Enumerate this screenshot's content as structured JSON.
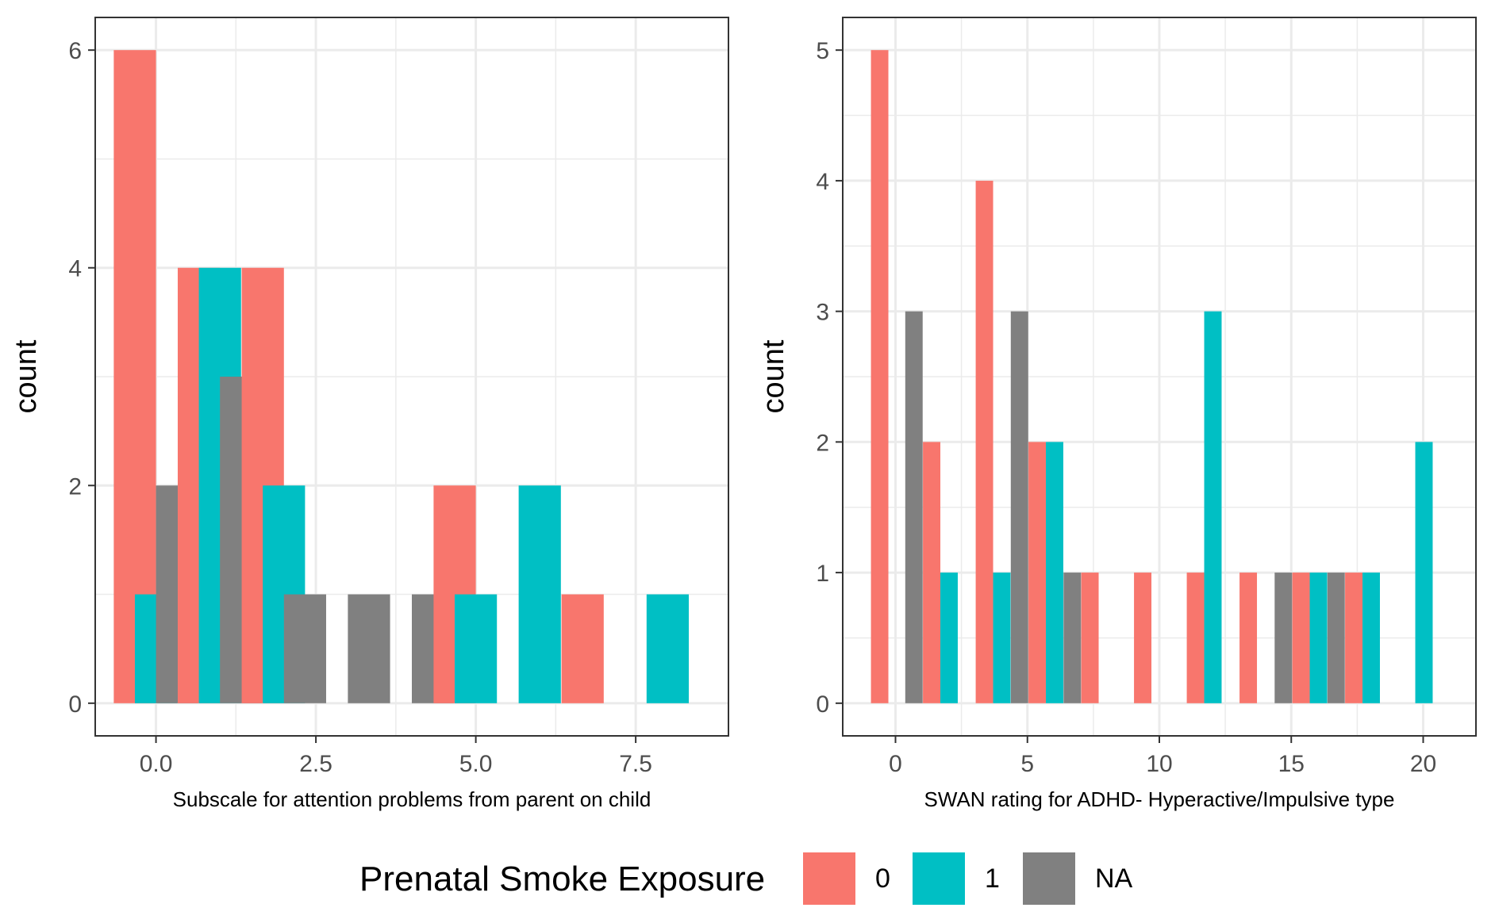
{
  "colors": {
    "0": "#F8766D",
    "1": "#00BFC4",
    "NA": "#808080"
  },
  "legend": {
    "title": "Prenatal Smoke Exposure",
    "items": [
      {
        "label": "0",
        "color": "#F8766D"
      },
      {
        "label": "1",
        "color": "#00BFC4"
      },
      {
        "label": "NA",
        "color": "#808080"
      }
    ]
  },
  "chart_data": [
    {
      "type": "bar",
      "xlabel": "Subscale for attention problems from parent on child",
      "ylabel": "count",
      "xlim": [
        -0.95,
        8.95
      ],
      "ylim": [
        -0.3,
        6.3
      ],
      "bar_width": 0.66,
      "x_ticks": [
        {
          "value": 0,
          "label": "0.0"
        },
        {
          "value": 2.5,
          "label": "2.5"
        },
        {
          "value": 5,
          "label": "5.0"
        },
        {
          "value": 7.5,
          "label": "7.5"
        }
      ],
      "y_ticks": [
        0,
        2,
        4,
        6
      ],
      "grid": true,
      "bars": [
        {
          "group": "0",
          "x": -0.33,
          "count": 6
        },
        {
          "group": "1",
          "x": 0,
          "count": 1
        },
        {
          "group": "NA",
          "x": 0.33,
          "count": 2
        },
        {
          "group": "0",
          "x": 0.67,
          "count": 4
        },
        {
          "group": "1",
          "x": 1,
          "count": 4
        },
        {
          "group": "NA",
          "x": 1.33,
          "count": 3
        },
        {
          "group": "0",
          "x": 1.67,
          "count": 4
        },
        {
          "group": "1",
          "x": 2,
          "count": 2
        },
        {
          "group": "NA",
          "x": 2.33,
          "count": 1
        },
        {
          "group": "NA",
          "x": 3.33,
          "count": 1
        },
        {
          "group": "NA",
          "x": 4.33,
          "count": 1
        },
        {
          "group": "0",
          "x": 4.67,
          "count": 2
        },
        {
          "group": "1",
          "x": 5,
          "count": 1
        },
        {
          "group": "1",
          "x": 6,
          "count": 2
        },
        {
          "group": "0",
          "x": 6.67,
          "count": 1
        },
        {
          "group": "1",
          "x": 8,
          "count": 1
        }
      ]
    },
    {
      "type": "bar",
      "xlabel": "SWAN rating for ADHD- Hyperactive/Impulsive type",
      "ylabel": "count",
      "xlim": [
        -2,
        22
      ],
      "ylim": [
        -0.25,
        5.25
      ],
      "bar_width": 0.66,
      "x_ticks": [
        {
          "value": 0,
          "label": "0"
        },
        {
          "value": 5,
          "label": "5"
        },
        {
          "value": 10,
          "label": "10"
        },
        {
          "value": 15,
          "label": "15"
        },
        {
          "value": 20,
          "label": "20"
        }
      ],
      "y_ticks": [
        0,
        1,
        2,
        3,
        4,
        5
      ],
      "grid": true,
      "bars": [
        {
          "group": "0",
          "x": -0.6,
          "count": 5
        },
        {
          "group": "NA",
          "x": 0.7,
          "count": 3
        },
        {
          "group": "0",
          "x": 1.37,
          "count": 2
        },
        {
          "group": "1",
          "x": 2.03,
          "count": 1
        },
        {
          "group": "0",
          "x": 3.37,
          "count": 4
        },
        {
          "group": "1",
          "x": 4.03,
          "count": 1
        },
        {
          "group": "NA",
          "x": 4.7,
          "count": 3
        },
        {
          "group": "0",
          "x": 5.37,
          "count": 2
        },
        {
          "group": "1",
          "x": 6.03,
          "count": 2
        },
        {
          "group": "NA",
          "x": 6.7,
          "count": 1
        },
        {
          "group": "0",
          "x": 7.37,
          "count": 1
        },
        {
          "group": "0",
          "x": 9.37,
          "count": 1
        },
        {
          "group": "0",
          "x": 11.37,
          "count": 1
        },
        {
          "group": "1",
          "x": 12.03,
          "count": 3
        },
        {
          "group": "0",
          "x": 13.37,
          "count": 1
        },
        {
          "group": "NA",
          "x": 14.7,
          "count": 1
        },
        {
          "group": "0",
          "x": 15.37,
          "count": 1
        },
        {
          "group": "1",
          "x": 16.03,
          "count": 1
        },
        {
          "group": "NA",
          "x": 16.7,
          "count": 1
        },
        {
          "group": "0",
          "x": 17.37,
          "count": 1
        },
        {
          "group": "1",
          "x": 18.03,
          "count": 1
        },
        {
          "group": "1",
          "x": 20.03,
          "count": 2
        }
      ]
    }
  ]
}
